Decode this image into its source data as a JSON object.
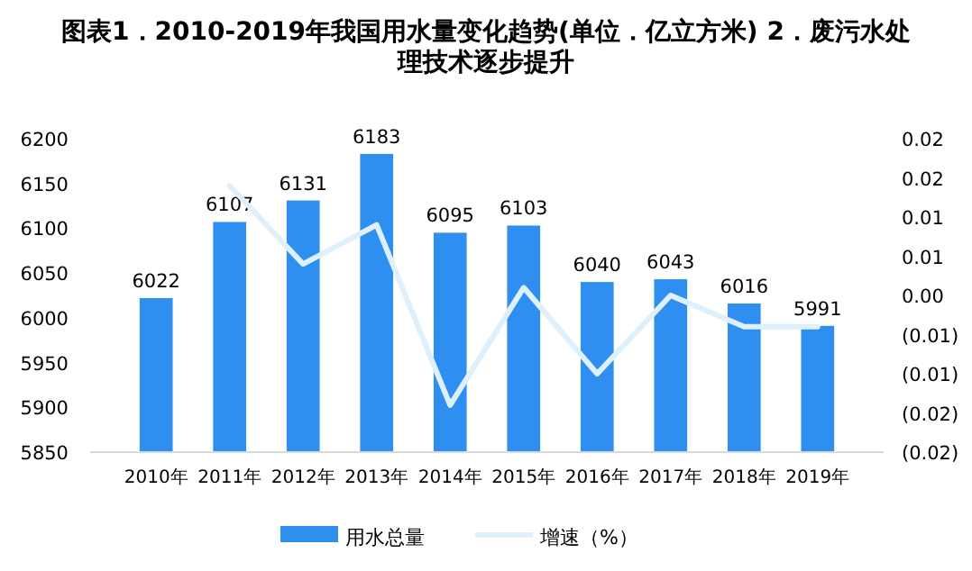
{
  "chart_data": {
    "type": "bar",
    "title": "图表1．2010-2019年我国用水量变化趋势(单位．亿立方米) 2．废污水处理技术逐步提升",
    "categories": [
      "2010年",
      "2011年",
      "2012年",
      "2013年",
      "2014年",
      "2015年",
      "2016年",
      "2017年",
      "2018年",
      "2019年"
    ],
    "series": [
      {
        "name": "用水总量",
        "color": "#2e8ff0",
        "values": [
          6022,
          6107,
          6131,
          6183,
          6095,
          6103,
          6040,
          6043,
          6016,
          5991
        ],
        "value_labels": [
          "6022",
          "6107",
          "6131",
          "6183",
          "6095",
          "6103",
          "6040",
          "6043",
          "6016",
          "5991"
        ]
      },
      {
        "name": "增速（%）",
        "type": "line",
        "axis": "y2",
        "color": "#ddf0fb",
        "values": [
          null,
          0.014,
          0.004,
          0.009,
          -0.014,
          0.001,
          -0.01,
          0.0,
          -0.004,
          -0.004
        ]
      }
    ],
    "ylim": [
      5850,
      6200
    ],
    "yticks": [
      5850,
      5900,
      5950,
      6000,
      6050,
      6100,
      6150,
      6200
    ],
    "y2lim": [
      -0.02,
      0.02
    ],
    "y2ticks": [
      {
        "value": -0.02,
        "label": "(0.02)"
      },
      {
        "value": -0.015,
        "label": "(0.02)"
      },
      {
        "value": -0.01,
        "label": "(0.01)"
      },
      {
        "value": -0.005,
        "label": "(0.01)"
      },
      {
        "value": 0,
        "label": "0.00"
      },
      {
        "value": 0.005,
        "label": "0.01"
      },
      {
        "value": 0.01,
        "label": "0.01"
      },
      {
        "value": 0.015,
        "label": "0.02"
      },
      {
        "value": 0.02,
        "label": "0.02"
      }
    ],
    "grid": false,
    "legend": "bottom",
    "marker": "none"
  }
}
